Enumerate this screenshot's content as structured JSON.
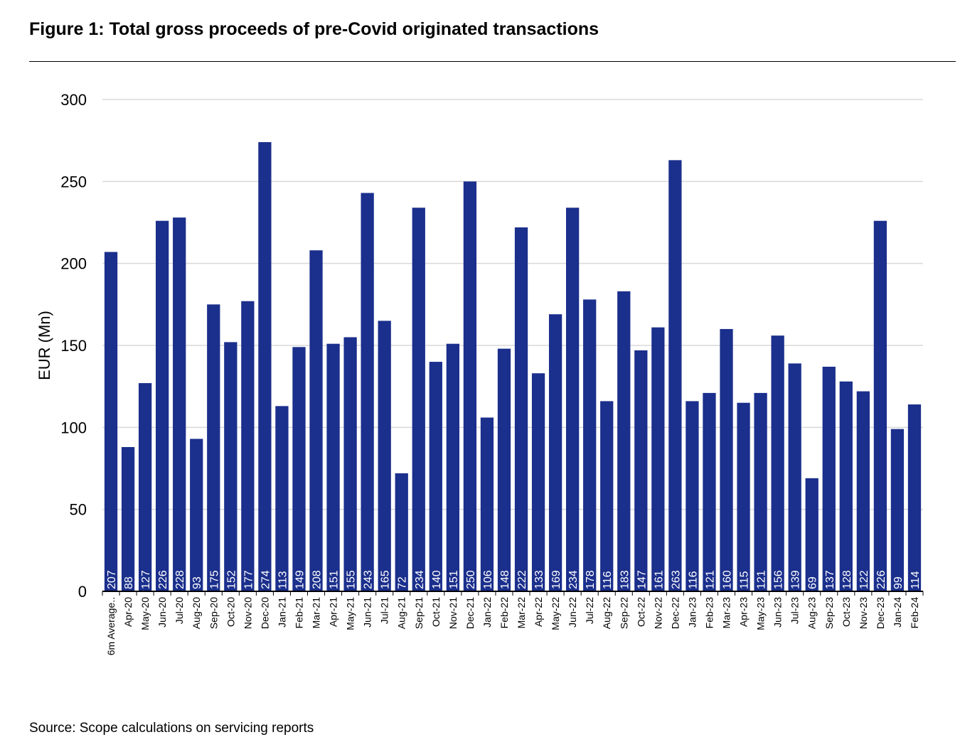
{
  "header": {
    "title": "Figure 1: Total gross proceeds of pre-Covid originated transactions"
  },
  "footer": {
    "source": "Source: Scope calculations on servicing reports"
  },
  "colors": {
    "bar": "#1b2f8c",
    "grid": "#d9d9d9",
    "axis": "#000000"
  },
  "chart_data": {
    "type": "bar",
    "title": "Figure 1: Total gross proceeds of pre-Covid originated transactions",
    "xlabel": "",
    "ylabel": "EUR (Mn)",
    "ylim": [
      0,
      300
    ],
    "yticks": [
      0,
      50,
      100,
      150,
      200,
      250,
      300
    ],
    "grid": true,
    "legend": "none",
    "categories": [
      "6m Average..",
      "Apr-20",
      "May-20",
      "Jun-20",
      "Jul-20",
      "Aug-20",
      "Sep-20",
      "Oct-20",
      "Nov-20",
      "Dec-20",
      "Jan-21",
      "Feb-21",
      "Mar-21",
      "Apr-21",
      "May-21",
      "Jun-21",
      "Jul-21",
      "Aug-21",
      "Sep-21",
      "Oct-21",
      "Nov-21",
      "Dec-21",
      "Jan-22",
      "Feb-22",
      "Mar-22",
      "Apr-22",
      "May-22",
      "Jun-22",
      "Jul-22",
      "Aug-22",
      "Sep-22",
      "Oct-22",
      "Nov-22",
      "Dec-22",
      "Jan-23",
      "Feb-23",
      "Mar-23",
      "Apr-23",
      "May-23",
      "Jun-23",
      "Jul-23",
      "Aug-23",
      "Sep-23",
      "Oct-23",
      "Nov-23",
      "Dec-23",
      "Jan-24",
      "Feb-24"
    ],
    "values": [
      207,
      88,
      127,
      226,
      228,
      93,
      175,
      152,
      177,
      274,
      113,
      149,
      208,
      151,
      155,
      243,
      165,
      72,
      234,
      140,
      151,
      250,
      106,
      148,
      222,
      133,
      169,
      234,
      178,
      116,
      183,
      147,
      161,
      263,
      116,
      121,
      160,
      115,
      121,
      156,
      139,
      69,
      137,
      128,
      122,
      226,
      99,
      114
    ]
  }
}
